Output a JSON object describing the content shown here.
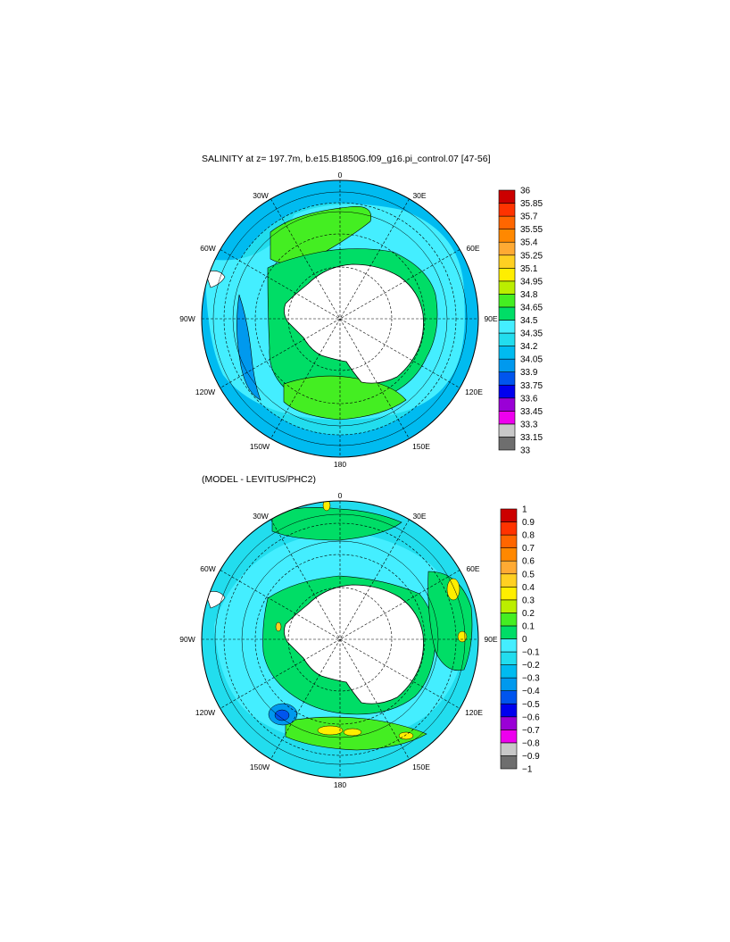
{
  "colors": {
    "land": "#ffffff",
    "palette_top": [
      "#6e6e6e",
      "#c8c8c8",
      "#ee00ee",
      "#9a00d6",
      "#0000ee",
      "#0055ee",
      "#0099ee",
      "#00bbf0",
      "#22ddee",
      "#44eeff",
      "#00dd66",
      "#44ee22",
      "#bbee00",
      "#ffee00",
      "#ffd022",
      "#ffaa33",
      "#ff8800",
      "#ff6600",
      "#ff3300",
      "#cc0000"
    ],
    "palette_bottom": [
      "#6e6e6e",
      "#c8c8c8",
      "#ee00ee",
      "#9a00d6",
      "#0000ee",
      "#0055ee",
      "#0099ee",
      "#00bbf0",
      "#22ddee",
      "#44eeff",
      "#00dd66",
      "#44ee22",
      "#bbee00",
      "#ffee00",
      "#ffd022",
      "#ffaa33",
      "#ff8800",
      "#ff6600",
      "#ff3300",
      "#cc0000"
    ]
  },
  "panels": [
    {
      "title": "SALINITY at z= 197.7m, b.e15.B1850G.f09_g16.pi_control.07 [47-56]",
      "lon_labels": {
        "n0": "0",
        "n30e": "30E",
        "n60e": "60E",
        "n90e": "90E",
        "n120e": "120E",
        "n150e": "150E",
        "n180": "180",
        "n150w": "150W",
        "n120w": "120W",
        "n90w": "90W",
        "n60w": "60W",
        "n30w": "30W"
      },
      "colorbar_labels": [
        "36",
        "35.85",
        "35.7",
        "35.55",
        "35.4",
        "35.25",
        "35.1",
        "34.95",
        "34.8",
        "34.65",
        "34.5",
        "34.35",
        "34.2",
        "34.05",
        "33.9",
        "33.75",
        "33.6",
        "33.45",
        "33.3",
        "33.15",
        "33"
      ]
    },
    {
      "title": "(MODEL - LEVITUS/PHC2)",
      "lon_labels": {
        "n0": "0",
        "n30e": "30E",
        "n60e": "60E",
        "n90e": "90E",
        "n120e": "120E",
        "n150e": "150E",
        "n180": "180",
        "n150w": "150W",
        "n120w": "120W",
        "n90w": "90W",
        "n60w": "60W",
        "n30w": "30W"
      },
      "colorbar_labels": [
        "1",
        "0.9",
        "0.8",
        "0.7",
        "0.6",
        "0.5",
        "0.4",
        "0.3",
        "0.2",
        "0.1",
        "0",
        "−0.1",
        "−0.2",
        "−0.3",
        "−0.4",
        "−0.5",
        "−0.6",
        "−0.7",
        "−0.8",
        "−0.9",
        "−1"
      ]
    }
  ]
}
